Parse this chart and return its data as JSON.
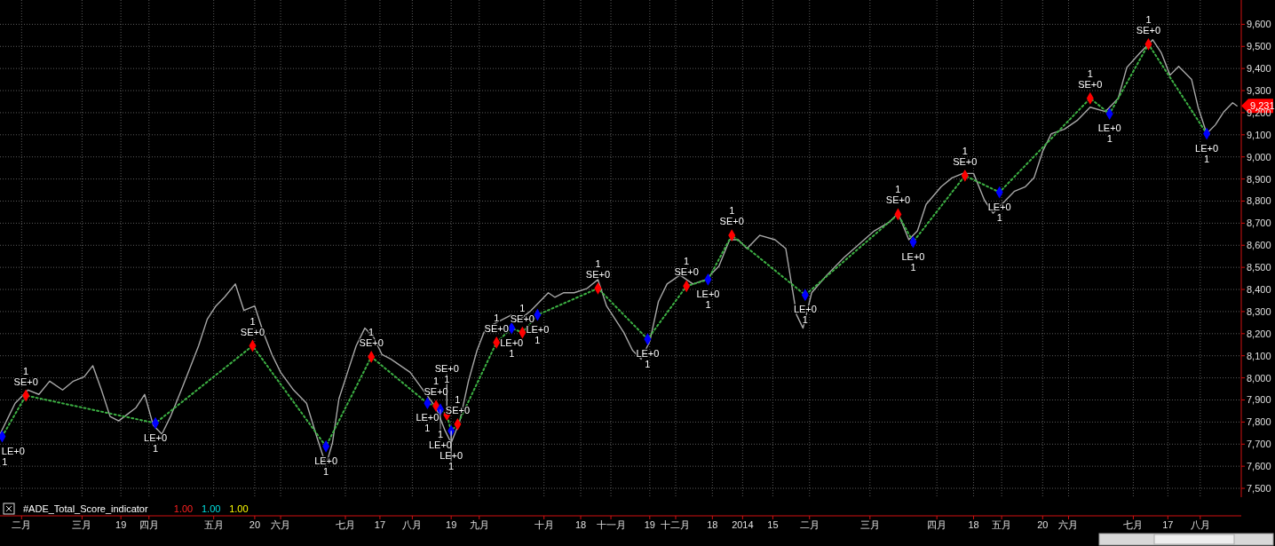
{
  "chart_data": {
    "type": "line",
    "xlim": [
      "2013-01-22",
      "2014-08-20"
    ],
    "xticks": [
      {
        "value": "2013-02-01",
        "label": "二月"
      },
      {
        "value": "2013-03-01",
        "label": "三月"
      },
      {
        "value": "2013-03-19",
        "label": "19"
      },
      {
        "value": "2013-04-01",
        "label": "四月"
      },
      {
        "value": "2013-05-01",
        "label": "五月"
      },
      {
        "value": "2013-05-20",
        "label": "20"
      },
      {
        "value": "2013-06-01",
        "label": "六月"
      },
      {
        "value": "2013-07-01",
        "label": "七月"
      },
      {
        "value": "2013-07-17",
        "label": "17"
      },
      {
        "value": "2013-08-01",
        "label": "八月"
      },
      {
        "value": "2013-08-19",
        "label": "19"
      },
      {
        "value": "2013-09-01",
        "label": "九月"
      },
      {
        "value": "2013-10-01",
        "label": "十月"
      },
      {
        "value": "2013-10-18",
        "label": "18"
      },
      {
        "value": "2013-11-01",
        "label": "十一月"
      },
      {
        "value": "2013-11-19",
        "label": "19"
      },
      {
        "value": "2013-12-01",
        "label": "十二月"
      },
      {
        "value": "2013-12-18",
        "label": "18"
      },
      {
        "value": "2014-01-01",
        "label": "2014"
      },
      {
        "value": "2014-01-15",
        "label": "15"
      },
      {
        "value": "2014-02-01",
        "label": "二月"
      },
      {
        "value": "2014-03-01",
        "label": "三月"
      },
      {
        "value": "2014-04-01",
        "label": "四月"
      },
      {
        "value": "2014-04-18",
        "label": "18"
      },
      {
        "value": "2014-05-01",
        "label": "五月"
      },
      {
        "value": "2014-05-20",
        "label": "20"
      },
      {
        "value": "2014-06-01",
        "label": "六月"
      },
      {
        "value": "2014-07-01",
        "label": "七月"
      },
      {
        "value": "2014-07-17",
        "label": "17"
      },
      {
        "value": "2014-08-01",
        "label": "八月"
      }
    ],
    "ylim": [
      7460,
      9710
    ],
    "yticks": [
      {
        "value": 7500,
        "label": "7,500"
      },
      {
        "value": 7600,
        "label": "7,600"
      },
      {
        "value": 7700,
        "label": "7,700"
      },
      {
        "value": 7800,
        "label": "7,800"
      },
      {
        "value": 7900,
        "label": "7,900"
      },
      {
        "value": 8000,
        "label": "8,000"
      },
      {
        "value": 8100,
        "label": "8,100"
      },
      {
        "value": 8200,
        "label": "8,200"
      },
      {
        "value": 8300,
        "label": "8,300"
      },
      {
        "value": 8400,
        "label": "8,400"
      },
      {
        "value": 8500,
        "label": "8,500"
      },
      {
        "value": 8600,
        "label": "8,600"
      },
      {
        "value": 8700,
        "label": "8,700"
      },
      {
        "value": 8800,
        "label": "8,800"
      },
      {
        "value": 8900,
        "label": "8,900"
      },
      {
        "value": 9000,
        "label": "9,000"
      },
      {
        "value": 9100,
        "label": "9,100"
      },
      {
        "value": 9200,
        "label": "9,200"
      },
      {
        "value": 9300,
        "label": "9,300"
      },
      {
        "value": 9400,
        "label": "9,400"
      },
      {
        "value": 9500,
        "label": "9,500"
      },
      {
        "value": 9600,
        "label": "9,600"
      }
    ],
    "grid": true,
    "series": [
      {
        "color": "#a8a8a8",
        "x": [
          "2013-01-22",
          "2013-01-26",
          "2013-01-29",
          "2013-02-04",
          "2013-02-09",
          "2013-02-14",
          "2013-02-20",
          "2013-02-25",
          "2013-03-02",
          "2013-03-06",
          "2013-03-10",
          "2013-03-14",
          "2013-03-18",
          "2013-03-22",
          "2013-03-26",
          "2013-03-30",
          "2013-04-03",
          "2013-04-07",
          "2013-04-11",
          "2013-04-16",
          "2013-04-20",
          "2013-04-24",
          "2013-04-28",
          "2013-05-02",
          "2013-05-06",
          "2013-05-11",
          "2013-05-15",
          "2013-05-20",
          "2013-05-24",
          "2013-05-28",
          "2013-06-01",
          "2013-06-07",
          "2013-06-13",
          "2013-06-18",
          "2013-06-22",
          "2013-06-25",
          "2013-06-28",
          "2013-07-02",
          "2013-07-06",
          "2013-07-10",
          "2013-07-14",
          "2013-07-18",
          "2013-07-22",
          "2013-07-25",
          "2013-07-31",
          "2013-08-06",
          "2013-08-12",
          "2013-08-16",
          "2013-08-19",
          "2013-08-23",
          "2013-08-27",
          "2013-08-31",
          "2013-09-04",
          "2013-09-08",
          "2013-09-12",
          "2013-09-16",
          "2013-09-20",
          "2013-09-25",
          "2013-09-29",
          "2013-10-03",
          "2013-10-06",
          "2013-10-10",
          "2013-10-15",
          "2013-10-21",
          "2013-10-26",
          "2013-10-30",
          "2013-11-03",
          "2013-11-07",
          "2013-11-11",
          "2013-11-15",
          "2013-11-19",
          "2013-11-23",
          "2013-11-27",
          "2013-12-03",
          "2013-12-09",
          "2013-12-15",
          "2013-12-21",
          "2013-12-26",
          "2013-12-30",
          "2014-01-03",
          "2014-01-09",
          "2014-01-16",
          "2014-01-21",
          "2014-01-26",
          "2014-01-29",
          "2014-02-02",
          "2014-02-09",
          "2014-02-17",
          "2014-02-24",
          "2014-03-03",
          "2014-03-10",
          "2014-03-14",
          "2014-03-19",
          "2014-03-23",
          "2014-03-27",
          "2014-04-03",
          "2014-04-08",
          "2014-04-13",
          "2014-04-18",
          "2014-04-23",
          "2014-04-27",
          "2014-05-01",
          "2014-05-07",
          "2014-05-12",
          "2014-05-16",
          "2014-05-20",
          "2014-05-24",
          "2014-05-30",
          "2014-06-05",
          "2014-06-11",
          "2014-06-18",
          "2014-06-24",
          "2014-06-28",
          "2014-07-04",
          "2014-07-10",
          "2014-07-14",
          "2014-07-18",
          "2014-07-22",
          "2014-07-28",
          "2014-07-31",
          "2014-08-04",
          "2014-08-08",
          "2014-08-12",
          "2014-08-16",
          "2014-08-18"
        ],
        "values": [
          7745,
          7825,
          7885,
          7945,
          7925,
          7985,
          7945,
          7985,
          8005,
          8055,
          7945,
          7825,
          7805,
          7835,
          7865,
          7925,
          7785,
          7745,
          7825,
          7945,
          8045,
          8145,
          8265,
          8325,
          8365,
          8425,
          8305,
          8325,
          8205,
          8105,
          8025,
          7945,
          7885,
          7725,
          7605,
          7705,
          7905,
          8025,
          8145,
          8225,
          8185,
          8105,
          8085,
          8065,
          8025,
          7945,
          7865,
          7765,
          7705,
          7805,
          7985,
          8125,
          8225,
          8245,
          8265,
          8285,
          8265,
          8305,
          8345,
          8385,
          8365,
          8385,
          8385,
          8405,
          8445,
          8325,
          8265,
          8205,
          8125,
          8085,
          8165,
          8345,
          8425,
          8465,
          8425,
          8445,
          8505,
          8625,
          8625,
          8585,
          8645,
          8625,
          8585,
          8285,
          8225,
          8385,
          8465,
          8545,
          8605,
          8665,
          8705,
          8745,
          8625,
          8665,
          8785,
          8865,
          8905,
          8925,
          8925,
          8805,
          8745,
          8785,
          8845,
          8865,
          8905,
          9025,
          9105,
          9125,
          9165,
          9225,
          9205,
          9265,
          9405,
          9470,
          9530,
          9470,
          9370,
          9410,
          9350,
          9225,
          9105,
          9145,
          9205,
          9245,
          9231
        ]
      },
      {
        "type": "line",
        "color": "#3cb043",
        "line_style": "dotted",
        "marker": "none",
        "x": [
          "2013-01-23",
          "2013-02-03",
          "2013-04-04",
          "2013-05-19",
          "2013-06-22",
          "2013-07-13",
          "2013-08-08",
          "2013-08-12",
          "2013-08-14",
          "2013-08-17",
          "2013-08-19",
          "2013-08-22",
          "2013-09-09",
          "2013-09-16",
          "2013-09-21",
          "2013-09-28",
          "2013-10-26",
          "2013-11-18",
          "2013-12-06",
          "2013-12-16",
          "2013-12-27",
          "2014-01-30",
          "2014-03-14",
          "2014-03-21",
          "2014-04-14",
          "2014-04-30",
          "2014-06-11",
          "2014-06-20",
          "2014-07-08",
          "2014-08-04"
        ],
        "values": [
          7735,
          7920,
          7795,
          8145,
          7690,
          8095,
          7885,
          7873,
          7857,
          7833,
          7760,
          7790,
          8160,
          8225,
          8205,
          8285,
          8405,
          8175,
          8415,
          8445,
          8645,
          8375,
          8740,
          8615,
          8915,
          8840,
          9265,
          9195,
          9510,
          9105
        ]
      },
      {
        "type": "scatter",
        "color": "#ff0000",
        "marker": "diamond",
        "x": [
          "2013-02-03",
          "2013-05-19",
          "2013-07-13",
          "2013-08-12",
          "2013-08-17",
          "2013-08-22",
          "2013-09-09",
          "2013-09-21",
          "2013-10-26",
          "2013-12-06",
          "2013-12-27",
          "2014-03-14",
          "2014-04-14",
          "2014-06-11",
          "2014-07-08"
        ],
        "values": [
          7920,
          8145,
          8095,
          7873,
          7833,
          7790,
          8160,
          8205,
          8405,
          8415,
          8645,
          8740,
          8915,
          9265,
          9510
        ]
      },
      {
        "type": "scatter",
        "color": "#0000ff",
        "marker": "diamond",
        "x": [
          "2013-01-23",
          "2013-04-04",
          "2013-06-22",
          "2013-08-08",
          "2013-08-14",
          "2013-08-19",
          "2013-09-16",
          "2013-09-28",
          "2013-11-18",
          "2013-12-16",
          "2014-01-30",
          "2014-03-21",
          "2014-04-30",
          "2014-06-20",
          "2014-08-04"
        ],
        "values": [
          7735,
          7795,
          7690,
          7885,
          7857,
          7760,
          8225,
          8285,
          8175,
          8445,
          8375,
          8615,
          8840,
          9195,
          9105
        ]
      }
    ],
    "annotations": [
      {
        "text": "SE+0",
        "x": "2013-02-03",
        "y": 7920
      },
      {
        "text": "1",
        "x": "2013-02-03",
        "y": 7920
      },
      {
        "text": "SE+0",
        "x": "2013-05-19",
        "y": 8145
      },
      {
        "text": "1",
        "x": "2013-05-19",
        "y": 8145
      },
      {
        "text": "SE+0",
        "x": "2013-07-13",
        "y": 8095
      },
      {
        "text": "1",
        "x": "2013-07-13",
        "y": 8095
      },
      {
        "text": "SE+0",
        "x": "2013-08-12",
        "y": 7873
      },
      {
        "text": "1",
        "x": "2013-08-12",
        "y": 7873
      },
      {
        "text": "SE+0",
        "x": "2013-08-17",
        "y": 7833
      },
      {
        "text": "1",
        "x": "2013-08-17",
        "y": 7833
      },
      {
        "text": "SE+0",
        "x": "2013-08-22",
        "y": 7790
      },
      {
        "text": "1",
        "x": "2013-08-22",
        "y": 7790
      },
      {
        "text": "SE+0",
        "x": "2013-09-09",
        "y": 8160
      },
      {
        "text": "1",
        "x": "2013-09-09",
        "y": 8160
      },
      {
        "text": "SE+0",
        "x": "2013-09-21",
        "y": 8205
      },
      {
        "text": "1",
        "x": "2013-09-21",
        "y": 8205
      },
      {
        "text": "SE+0",
        "x": "2013-10-26",
        "y": 8405
      },
      {
        "text": "1",
        "x": "2013-10-26",
        "y": 8405
      },
      {
        "text": "SE+0",
        "x": "2013-12-06",
        "y": 8415
      },
      {
        "text": "1",
        "x": "2013-12-06",
        "y": 8415
      },
      {
        "text": "SE+0",
        "x": "2013-12-27",
        "y": 8645
      },
      {
        "text": "1",
        "x": "2013-12-27",
        "y": 8645
      },
      {
        "text": "SE+0",
        "x": "2014-03-14",
        "y": 8740
      },
      {
        "text": "1",
        "x": "2014-03-14",
        "y": 8740
      },
      {
        "text": "SE+0",
        "x": "2014-04-14",
        "y": 8915
      },
      {
        "text": "1",
        "x": "2014-04-14",
        "y": 8915
      },
      {
        "text": "SE+0",
        "x": "2014-06-11",
        "y": 9265
      },
      {
        "text": "1",
        "x": "2014-06-11",
        "y": 9265
      },
      {
        "text": "SE+0",
        "x": "2014-07-08",
        "y": 9510
      },
      {
        "text": "1",
        "x": "2014-07-08",
        "y": 9510
      },
      {
        "text": "LE+0",
        "x": "2013-01-23",
        "y": 7735
      },
      {
        "text": "1",
        "x": "2013-01-23",
        "y": 7735
      },
      {
        "text": "LE+0",
        "x": "2013-04-04",
        "y": 7795
      },
      {
        "text": "1",
        "x": "2013-04-04",
        "y": 7795
      },
      {
        "text": "LE+0",
        "x": "2013-06-22",
        "y": 7690
      },
      {
        "text": "1",
        "x": "2013-06-22",
        "y": 7690
      },
      {
        "text": "LE+0",
        "x": "2013-08-08",
        "y": 7885
      },
      {
        "text": "1",
        "x": "2013-08-08",
        "y": 7885
      },
      {
        "text": "LE+0",
        "x": "2013-08-14",
        "y": 7857
      },
      {
        "text": "1",
        "x": "2013-08-14",
        "y": 7857
      },
      {
        "text": "LE+0",
        "x": "2013-08-19",
        "y": 7760
      },
      {
        "text": "1",
        "x": "2013-08-19",
        "y": 7760
      },
      {
        "text": "LE+0",
        "x": "2013-09-16",
        "y": 8225
      },
      {
        "text": "1",
        "x": "2013-09-16",
        "y": 8225
      },
      {
        "text": "LE+0",
        "x": "2013-09-28",
        "y": 8285
      },
      {
        "text": "1",
        "x": "2013-09-28",
        "y": 8285
      },
      {
        "text": "LE+0",
        "x": "2013-11-18",
        "y": 8175
      },
      {
        "text": "1",
        "x": "2013-11-18",
        "y": 8175
      },
      {
        "text": "LE+0",
        "x": "2013-12-16",
        "y": 8445
      },
      {
        "text": "1",
        "x": "2013-12-16",
        "y": 8445
      },
      {
        "text": "LE+0",
        "x": "2014-01-30",
        "y": 8375
      },
      {
        "text": "1",
        "x": "2014-01-30",
        "y": 8375
      },
      {
        "text": "LE+0",
        "x": "2014-03-21",
        "y": 8615
      },
      {
        "text": "1",
        "x": "2014-03-21",
        "y": 8615
      },
      {
        "text": "LE+0",
        "x": "2014-04-30",
        "y": 8840
      },
      {
        "text": "1",
        "x": "2014-04-30",
        "y": 8840
      },
      {
        "text": "LE+0",
        "x": "2014-06-20",
        "y": 9195
      },
      {
        "text": "1",
        "x": "2014-06-20",
        "y": 9195
      },
      {
        "text": "LE+0",
        "x": "2014-08-04",
        "y": 9105
      },
      {
        "text": "1",
        "x": "2014-08-04",
        "y": 9105
      },
      {
        "text": "9,231",
        "x": "2014-08-20",
        "y": 9231
      },
      "#ADE_Total_Score_indicator",
      "1.00",
      "1.00",
      "1.00"
    ]
  }
}
